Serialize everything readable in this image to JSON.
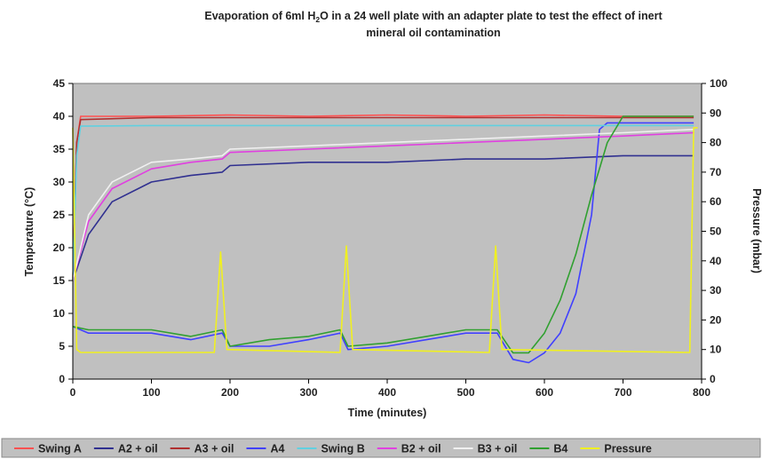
{
  "chart_data": {
    "type": "line",
    "title_main": "Evaporation of 6ml H",
    "title_sub": "2",
    "title_rest": "O in a 24 well plate with an adapter plate to test the effect of inert",
    "title_line2": "mineral oil contamination",
    "xlabel": "Time (minutes)",
    "ylabel_left": "Temperature (°C)",
    "ylabel_right": "Pressure (mbar)",
    "xlim": [
      0,
      800
    ],
    "ylim_left": [
      0,
      45
    ],
    "ylim_right": [
      0,
      100
    ],
    "x_ticks": [
      "0",
      "100",
      "200",
      "300",
      "400",
      "500",
      "600",
      "700",
      "800"
    ],
    "y_left_ticks": [
      "0",
      "5",
      "10",
      "15",
      "20",
      "25",
      "30",
      "35",
      "40",
      "45"
    ],
    "y_right_ticks": [
      "0",
      "10",
      "20",
      "30",
      "40",
      "50",
      "60",
      "70",
      "80",
      "90",
      "100"
    ],
    "background": "#c0c0c0",
    "grid": false,
    "legend_position": "bottom",
    "series": [
      {
        "name": "Swing A",
        "axis": "left",
        "color": "#ff5050",
        "x": [
          0,
          5,
          10,
          100,
          200,
          300,
          400,
          500,
          600,
          700,
          790
        ],
        "y": [
          15,
          36,
          40,
          40,
          40.2,
          40,
          40.2,
          40,
          40.2,
          40,
          40
        ]
      },
      {
        "name": "A2 + oil",
        "axis": "left",
        "color": "#303090",
        "x": [
          0,
          20,
          50,
          100,
          150,
          190,
          200,
          300,
          400,
          500,
          600,
          700,
          790
        ],
        "y": [
          15,
          22,
          27,
          30,
          31,
          31.5,
          32.5,
          33,
          33,
          33.5,
          33.5,
          34,
          34
        ]
      },
      {
        "name": "A3 + oil",
        "axis": "left",
        "color": "#b03030",
        "x": [
          0,
          5,
          10,
          100,
          200,
          300,
          400,
          500,
          600,
          700,
          790
        ],
        "y": [
          15,
          36,
          39.5,
          39.8,
          39.8,
          39.8,
          39.8,
          39.8,
          39.8,
          39.8,
          39.8
        ]
      },
      {
        "name": "A4",
        "axis": "left",
        "color": "#4040ff",
        "x": [
          0,
          20,
          100,
          150,
          190,
          200,
          250,
          300,
          340,
          350,
          400,
          450,
          500,
          540,
          560,
          580,
          600,
          620,
          640,
          660,
          670,
          680,
          700,
          750,
          790
        ],
        "y": [
          8,
          7,
          7,
          6,
          7,
          5,
          5,
          6,
          7,
          4.5,
          5,
          6,
          7,
          7,
          3,
          2.5,
          4,
          7,
          13,
          25,
          38,
          39,
          39,
          39,
          39
        ]
      },
      {
        "name": "Swing B",
        "axis": "left",
        "color": "#60d0e0",
        "x": [
          0,
          5,
          10,
          100,
          200,
          300,
          400,
          500,
          600,
          700,
          790
        ],
        "y": [
          15,
          34,
          38.5,
          38.6,
          38.6,
          38.6,
          38.6,
          38.6,
          38.6,
          38.6,
          38.6
        ]
      },
      {
        "name": "B2 + oil",
        "axis": "left",
        "color": "#e040e0",
        "x": [
          0,
          20,
          50,
          100,
          150,
          190,
          200,
          300,
          400,
          500,
          600,
          700,
          790
        ],
        "y": [
          15,
          24,
          29,
          32,
          33,
          33.5,
          34.5,
          35,
          35.5,
          36,
          36.5,
          37,
          37.5
        ]
      },
      {
        "name": "B3 + oil",
        "axis": "left",
        "color": "#f0f0f0",
        "x": [
          0,
          20,
          50,
          100,
          150,
          190,
          200,
          300,
          400,
          500,
          600,
          700,
          790
        ],
        "y": [
          15,
          25,
          30,
          33,
          33.5,
          34,
          35,
          35.5,
          36,
          36.5,
          37,
          37.5,
          38
        ]
      },
      {
        "name": "B4",
        "axis": "left",
        "color": "#30a030",
        "x": [
          0,
          20,
          100,
          150,
          190,
          200,
          250,
          300,
          340,
          350,
          400,
          450,
          500,
          540,
          560,
          580,
          600,
          620,
          640,
          660,
          680,
          700,
          750,
          790
        ],
        "y": [
          8,
          7.5,
          7.5,
          6.5,
          7.5,
          5,
          6,
          6.5,
          7.5,
          5,
          5.5,
          6.5,
          7.5,
          7.5,
          4,
          4,
          7,
          12,
          19,
          28,
          36,
          40,
          40,
          40
        ]
      },
      {
        "name": "Pressure",
        "axis": "right",
        "color": "#f0f020",
        "x": [
          0,
          5,
          10,
          180,
          188,
          196,
          340,
          348,
          356,
          530,
          538,
          546,
          785,
          790,
          795
        ],
        "y": [
          85,
          10,
          9,
          9,
          43,
          10,
          9,
          45,
          10,
          9,
          45,
          10,
          9,
          85,
          85
        ]
      }
    ]
  }
}
